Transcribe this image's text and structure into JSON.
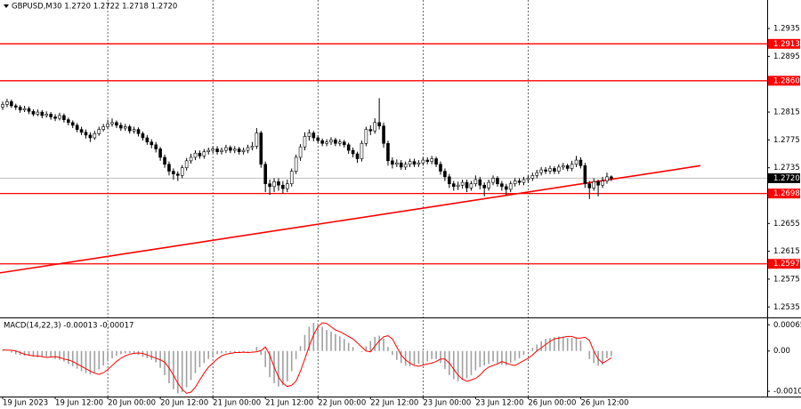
{
  "chart_data": [
    {
      "type": "candlestick",
      "title": "GBPUSD,M30  1.2720 1.2722 1.2718 1.2720",
      "categories": [
        "19 Jun 2023",
        null,
        null,
        null,
        null,
        null,
        null,
        null,
        null,
        null,
        null,
        null,
        "19 Jun 12:00",
        null,
        null,
        null,
        null,
        null,
        null,
        null,
        null,
        null,
        null,
        null,
        "20 Jun 00:00",
        null,
        null,
        null,
        null,
        null,
        null,
        null,
        null,
        null,
        null,
        null,
        "20 Jun 12:00",
        null,
        null,
        null,
        null,
        null,
        null,
        null,
        null,
        null,
        null,
        null,
        "21 Jun 00:00",
        null,
        null,
        null,
        null,
        null,
        null,
        null,
        null,
        null,
        null,
        null,
        "21 Jun 12:00",
        null,
        null,
        null,
        null,
        null,
        null,
        null,
        null,
        null,
        null,
        null,
        "22 Jun 00:00",
        null,
        null,
        null,
        null,
        null,
        null,
        null,
        null,
        null,
        null,
        null,
        "22 Jun 12:00",
        null,
        null,
        null,
        null,
        null,
        null,
        null,
        null,
        null,
        null,
        null,
        "23 Jun 00:00",
        null,
        null,
        null,
        null,
        null,
        null,
        null,
        null,
        null,
        null,
        null,
        "23 Jun 12:00",
        null,
        null,
        null,
        null,
        null,
        null,
        null,
        null,
        null,
        null,
        null,
        "26 Jun 00:00",
        null,
        null,
        null,
        null,
        null,
        null,
        null,
        null,
        null,
        null,
        null,
        "26 Jun 12:00",
        null,
        null,
        null,
        null,
        null,
        null,
        null
      ],
      "open": [
        1.2822,
        1.2826,
        1.283,
        1.2824,
        1.2822,
        1.2818,
        1.282,
        1.2816,
        1.2812,
        1.2815,
        1.281,
        1.2812,
        1.2808,
        1.2806,
        1.281,
        1.2804,
        1.28,
        1.2796,
        1.279,
        1.2786,
        1.2782,
        1.2778,
        1.2784,
        1.279,
        1.2794,
        1.2798,
        1.28,
        1.2796,
        1.2792,
        1.2794,
        1.2788,
        1.279,
        1.2784,
        1.2778,
        1.2772,
        1.2768,
        1.2762,
        1.275,
        1.274,
        1.273,
        1.2726,
        1.2724,
        1.2735,
        1.2745,
        1.275,
        1.2756,
        1.2752,
        1.2758,
        1.276,
        1.2762,
        1.2758,
        1.276,
        1.2764,
        1.276,
        1.2762,
        1.2758,
        1.276,
        1.2764,
        1.2766,
        1.2785,
        1.274,
        1.2712,
        1.2708,
        1.2715,
        1.271,
        1.2705,
        1.2712,
        1.273,
        1.275,
        1.2765,
        1.278,
        1.2785,
        1.2778,
        1.2774,
        1.277,
        1.2772,
        1.2775,
        1.277,
        1.2772,
        1.2768,
        1.276,
        1.2755,
        1.2748,
        1.277,
        1.279,
        1.2788,
        1.28,
        1.2795,
        1.277,
        1.2745,
        1.274,
        1.2742,
        1.2736,
        1.274,
        1.2744,
        1.274,
        1.2742,
        1.2746,
        1.2744,
        1.2748,
        1.274,
        1.273,
        1.2722,
        1.2712,
        1.2708,
        1.271,
        1.2714,
        1.2706,
        1.2712,
        1.2718,
        1.271,
        1.2706,
        1.2714,
        1.272,
        1.2712,
        1.2708,
        1.2704,
        1.2712,
        1.2716,
        1.2714,
        1.2718,
        1.272,
        1.2724,
        1.2728,
        1.2732,
        1.273,
        1.2734,
        1.273,
        1.2736,
        1.2738,
        1.2734,
        1.274,
        1.2746,
        1.2738,
        1.2712,
        1.2706,
        1.2715,
        1.271,
        1.2716,
        1.2722
      ],
      "high": [
        1.283,
        1.2834,
        1.2833,
        1.2827,
        1.2825,
        1.2824,
        1.2823,
        1.2819,
        1.2819,
        1.2818,
        1.2816,
        1.2815,
        1.2812,
        1.2814,
        1.2813,
        1.2807,
        1.2803,
        1.2799,
        1.2794,
        1.279,
        1.2786,
        1.2788,
        1.2794,
        1.2798,
        1.2804,
        1.2806,
        1.2803,
        1.28,
        1.2798,
        1.2797,
        1.2794,
        1.2793,
        1.2787,
        1.2782,
        1.2776,
        1.2772,
        1.2765,
        1.2754,
        1.2744,
        1.2734,
        1.273,
        1.2739,
        1.2749,
        1.2755,
        1.276,
        1.276,
        1.2762,
        1.2764,
        1.2766,
        1.2766,
        1.2764,
        1.2768,
        1.2767,
        1.2766,
        1.2765,
        1.2764,
        1.2768,
        1.2772,
        1.2792,
        1.2788,
        1.2744,
        1.2718,
        1.272,
        1.272,
        1.2716,
        1.2718,
        1.2734,
        1.2754,
        1.2769,
        1.2786,
        1.279,
        1.2788,
        1.2782,
        1.2777,
        1.2776,
        1.2779,
        1.2778,
        1.2776,
        1.2775,
        1.2771,
        1.2764,
        1.2758,
        1.2774,
        1.2794,
        1.2796,
        1.2806,
        1.2835,
        1.28,
        1.2774,
        1.275,
        1.2747,
        1.2746,
        1.2744,
        1.2748,
        1.2748,
        1.2746,
        1.275,
        1.275,
        1.2752,
        1.2751,
        1.2744,
        1.2734,
        1.2726,
        1.2716,
        1.2715,
        1.2718,
        1.2718,
        1.2716,
        1.2724,
        1.2722,
        1.2714,
        1.2718,
        1.2724,
        1.2723,
        1.2716,
        1.2712,
        1.2716,
        1.272,
        1.272,
        1.2722,
        1.2724,
        1.2728,
        1.2732,
        1.2736,
        1.2736,
        1.2738,
        1.2737,
        1.274,
        1.2742,
        1.2741,
        1.2745,
        1.2752,
        1.275,
        1.2742,
        1.2716,
        1.272,
        1.2718,
        1.2722,
        1.2728,
        1.2724
      ],
      "low": [
        1.2818,
        1.2822,
        1.2821,
        1.2818,
        1.2814,
        1.2815,
        1.2812,
        1.2809,
        1.2809,
        1.2806,
        1.2807,
        1.2804,
        1.2802,
        1.2803,
        1.28,
        1.2796,
        1.2792,
        1.2786,
        1.2782,
        1.2777,
        1.2772,
        1.2775,
        1.2781,
        1.2787,
        1.2791,
        1.2794,
        1.2792,
        1.2788,
        1.2788,
        1.2784,
        1.2784,
        1.278,
        1.2774,
        1.2768,
        1.2763,
        1.2757,
        1.2745,
        1.2735,
        1.2724,
        1.2718,
        1.2716,
        1.272,
        1.2731,
        1.2741,
        1.2746,
        1.2748,
        1.2748,
        1.2754,
        1.2756,
        1.2754,
        1.2754,
        1.2756,
        1.2756,
        1.2756,
        1.2754,
        1.2754,
        1.2756,
        1.276,
        1.2762,
        1.2735,
        1.27,
        1.2696,
        1.27,
        1.2702,
        1.2698,
        1.27,
        1.2708,
        1.2726,
        1.2745,
        1.276,
        1.2774,
        1.2773,
        1.277,
        1.2766,
        1.2766,
        1.2768,
        1.2766,
        1.2766,
        1.2764,
        1.2755,
        1.275,
        1.2742,
        1.2744,
        1.2766,
        1.2782,
        1.2784,
        1.279,
        1.2764,
        1.2738,
        1.2734,
        1.2736,
        1.2732,
        1.2732,
        1.2736,
        1.2736,
        1.2736,
        1.2738,
        1.274,
        1.274,
        1.2736,
        1.2725,
        1.2716,
        1.2706,
        1.2702,
        1.2703,
        1.2705,
        1.27,
        1.2702,
        1.2708,
        1.2704,
        1.2694,
        1.2702,
        1.271,
        1.2708,
        1.2702,
        1.2696,
        1.27,
        1.2708,
        1.271,
        1.271,
        1.2713,
        1.2716,
        1.272,
        1.2724,
        1.2726,
        1.2726,
        1.2726,
        1.2726,
        1.2732,
        1.273,
        1.273,
        1.2736,
        1.2734,
        1.2706,
        1.269,
        1.2702,
        1.2694,
        1.2706,
        1.2712,
        1.2716
      ],
      "close": [
        1.2826,
        1.283,
        1.2824,
        1.2822,
        1.2818,
        1.282,
        1.2816,
        1.2812,
        1.2815,
        1.281,
        1.2812,
        1.2808,
        1.2806,
        1.281,
        1.2804,
        1.28,
        1.2796,
        1.279,
        1.2786,
        1.2782,
        1.2778,
        1.2784,
        1.279,
        1.2794,
        1.2798,
        1.28,
        1.2796,
        1.2792,
        1.2794,
        1.2788,
        1.279,
        1.2784,
        1.2778,
        1.2772,
        1.2768,
        1.2762,
        1.275,
        1.274,
        1.273,
        1.2726,
        1.2724,
        1.2735,
        1.2745,
        1.275,
        1.2756,
        1.2752,
        1.2758,
        1.276,
        1.2762,
        1.2758,
        1.276,
        1.2764,
        1.276,
        1.2762,
        1.2758,
        1.276,
        1.2764,
        1.2766,
        1.2785,
        1.274,
        1.2712,
        1.2708,
        1.2715,
        1.271,
        1.2705,
        1.2712,
        1.273,
        1.275,
        1.2765,
        1.278,
        1.2785,
        1.2778,
        1.2774,
        1.277,
        1.2772,
        1.2775,
        1.277,
        1.2772,
        1.2768,
        1.276,
        1.2755,
        1.2748,
        1.277,
        1.279,
        1.2788,
        1.28,
        1.2795,
        1.277,
        1.2745,
        1.274,
        1.2742,
        1.2736,
        1.274,
        1.2744,
        1.274,
        1.2742,
        1.2746,
        1.2744,
        1.2748,
        1.274,
        1.273,
        1.2722,
        1.2712,
        1.2708,
        1.271,
        1.2714,
        1.2706,
        1.2712,
        1.2718,
        1.271,
        1.2706,
        1.2714,
        1.272,
        1.2712,
        1.2708,
        1.2704,
        1.2712,
        1.2716,
        1.2714,
        1.2718,
        1.272,
        1.2724,
        1.2728,
        1.2732,
        1.273,
        1.2734,
        1.273,
        1.2736,
        1.2738,
        1.2734,
        1.274,
        1.2746,
        1.2738,
        1.2712,
        1.2706,
        1.2715,
        1.271,
        1.2716,
        1.2722,
        1.272
      ],
      "bull_color": "#ffffff",
      "bear_color": "#000000",
      "candle_outline": "#000000",
      "ylim": [
        1.252,
        1.2976
      ],
      "yticks": [
        1.2935,
        1.2895,
        1.2815,
        1.2775,
        1.2735,
        1.2655,
        1.2615,
        1.2575,
        1.2535
      ],
      "levels": [
        {
          "value": 1.2913,
          "label": "1.2913"
        },
        {
          "value": 1.286,
          "label": "1.2860"
        },
        {
          "value": 1.2698,
          "label": "1.2698"
        },
        {
          "value": 1.2597,
          "label": "1.2597"
        }
      ],
      "level_color": "#ff0000",
      "last_price": {
        "value": 1.272,
        "label": "1.2720"
      },
      "trendline": {
        "start": 1.2584,
        "end": 1.2738,
        "color": "#ff0000"
      },
      "xgrid": true
    },
    {
      "type": "macd",
      "title": "MACD(14,22,3) -0.00013 -0.00017",
      "series": [
        {
          "name": "MACD",
          "color": "#a0a0a0",
          "values": [
            2e-05,
            0,
            -4e-05,
            -8e-05,
            -0.0001,
            -0.00012,
            -0.00012,
            -0.00014,
            -0.00016,
            -0.00015,
            -0.00014,
            -0.00016,
            -0.0002,
            -0.00022,
            -0.00026,
            -0.00032,
            -0.00038,
            -0.00044,
            -0.0005,
            -0.00055,
            -0.00058,
            -0.00054,
            -0.00046,
            -0.00036,
            -0.00026,
            -0.00018,
            -0.00012,
            -8e-05,
            -6e-05,
            -5e-05,
            -6e-05,
            -0.0001,
            -0.00014,
            -0.00018,
            -0.00022,
            -0.00028,
            -0.00042,
            -0.0006,
            -0.0008,
            -0.00095,
            -0.00105,
            -0.00102,
            -0.0009,
            -0.00072,
            -0.00055,
            -0.0004,
            -0.0003,
            -0.0002,
            -0.00012,
            -8e-05,
            -6e-05,
            -4e-05,
            -4e-05,
            -3e-05,
            -4e-05,
            -3e-05,
            -2e-05,
            1e-05,
            0.0001,
            -0.0001,
            -0.0004,
            -0.00065,
            -0.0008,
            -0.00088,
            -0.00085,
            -0.00075,
            -0.0005,
            -0.0002,
            0.00012,
            0.0004,
            0.0006,
            0.0007,
            0.00068,
            0.0006,
            0.00052,
            0.00048,
            0.00042,
            0.00036,
            0.0003,
            0.0002,
            0.0001,
            0,
            -2e-05,
            0.00012,
            0.00025,
            0.00035,
            0.00038,
            0.0003,
            0.0001,
            -0.0001,
            -0.00022,
            -0.0003,
            -0.00036,
            -0.00038,
            -0.00035,
            -0.00032,
            -0.0003,
            -0.00026,
            -0.0002,
            -0.0002,
            -0.0003,
            -0.00045,
            -0.0006,
            -0.0007,
            -0.00075,
            -0.00072,
            -0.00068,
            -0.0006,
            -0.00048,
            -0.0004,
            -0.00036,
            -0.00032,
            -0.00026,
            -0.0003,
            -0.00034,
            -0.00036,
            -0.0003,
            -0.00024,
            -0.00018,
            -0.0001,
            0,
            8e-05,
            0.00016,
            0.00024,
            0.0003,
            0.00032,
            0.00034,
            0.00036,
            0.00036,
            0.00032,
            0.00032,
            0.00034,
            0.00026,
            0,
            -0.0002,
            -0.0003,
            -0.00036,
            -0.00034,
            -0.00018,
            -0.00013
          ]
        },
        {
          "name": "Signal",
          "color": "#ff0000",
          "values": [
            3e-05,
            2e-05,
            2e-05,
            0,
            -4e-05,
            -8e-05,
            -0.0001,
            -0.00012,
            -0.00012,
            -0.00014,
            -0.00016,
            -0.00015,
            -0.00014,
            -0.00016,
            -0.0002,
            -0.00022,
            -0.00026,
            -0.00032,
            -0.00038,
            -0.00044,
            -0.0005,
            -0.00055,
            -0.00058,
            -0.00054,
            -0.00046,
            -0.00036,
            -0.00026,
            -0.00018,
            -0.00012,
            -8e-05,
            -6e-05,
            -5e-05,
            -6e-05,
            -0.0001,
            -0.00014,
            -0.00018,
            -0.00022,
            -0.00028,
            -0.00042,
            -0.0006,
            -0.0008,
            -0.00095,
            -0.00105,
            -0.00102,
            -0.0009,
            -0.00072,
            -0.00055,
            -0.0004,
            -0.0003,
            -0.0002,
            -0.00012,
            -8e-05,
            -6e-05,
            -4e-05,
            -4e-05,
            -3e-05,
            -4e-05,
            -3e-05,
            -2e-05,
            1e-05,
            0.0001,
            -0.0001,
            -0.0004,
            -0.00065,
            -0.0008,
            -0.00088,
            -0.00085,
            -0.00075,
            -0.0005,
            -0.0002,
            0.00012,
            0.0004,
            0.0006,
            0.0007,
            0.00068,
            0.0006,
            0.00052,
            0.00048,
            0.00042,
            0.00036,
            0.0003,
            0.0002,
            0.0001,
            0,
            -2e-05,
            0.00012,
            0.00025,
            0.00035,
            0.00038,
            0.0003,
            0.0001,
            -0.0001,
            -0.00022,
            -0.0003,
            -0.00036,
            -0.00038,
            -0.00035,
            -0.00032,
            -0.0003,
            -0.00026,
            -0.0002,
            -0.0002,
            -0.0003,
            -0.00045,
            -0.0006,
            -0.0007,
            -0.00075,
            -0.00072,
            -0.00068,
            -0.0006,
            -0.00048,
            -0.0004,
            -0.00036,
            -0.00032,
            -0.00026,
            -0.0003,
            -0.00034,
            -0.00036,
            -0.0003,
            -0.00024,
            -0.00018,
            -0.0001,
            0,
            8e-05,
            0.00016,
            0.00024,
            0.0003,
            0.00032,
            0.00034,
            0.00036,
            0.00036,
            0.00032,
            0.00032,
            0.00034,
            0.00026,
            0,
            -0.0002,
            -0.0003,
            -0.00024,
            -0.00017
          ]
        }
      ],
      "ylim": [
        -0.00113,
        0.00081
      ],
      "yticks": [
        0.00065,
        {
          "value": 0,
          "label": "0.00"
        },
        {
          "value": -0.001,
          "label": "-0.00100"
        }
      ]
    }
  ]
}
